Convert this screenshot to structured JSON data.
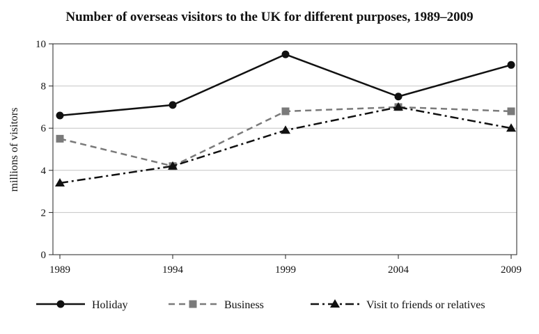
{
  "chart_data": {
    "type": "line",
    "title": "Number of overseas visitors to the UK for different purposes, 1989–2009",
    "xlabel": "",
    "ylabel": "millions of visitors",
    "categories": [
      "1989",
      "1994",
      "1999",
      "2004",
      "2009"
    ],
    "ylim": [
      0,
      10
    ],
    "yticks": [
      "0",
      "2",
      "4",
      "6",
      "8",
      "10"
    ],
    "grid": "horizontal",
    "legend_position": "bottom",
    "series": [
      {
        "name": "Holiday",
        "values": [
          6.6,
          7.1,
          9.5,
          7.5,
          9.0
        ],
        "color": "#111111",
        "dash": "solid",
        "marker": "circle"
      },
      {
        "name": "Business",
        "values": [
          5.5,
          4.2,
          6.8,
          7.0,
          6.8
        ],
        "color": "#7a7a7a",
        "dash": "dashed",
        "marker": "square"
      },
      {
        "name": "Visit to friends or relatives",
        "values": [
          3.4,
          4.2,
          5.9,
          7.0,
          6.0
        ],
        "color": "#111111",
        "dash": "dash-dot",
        "marker": "triangle"
      }
    ]
  }
}
